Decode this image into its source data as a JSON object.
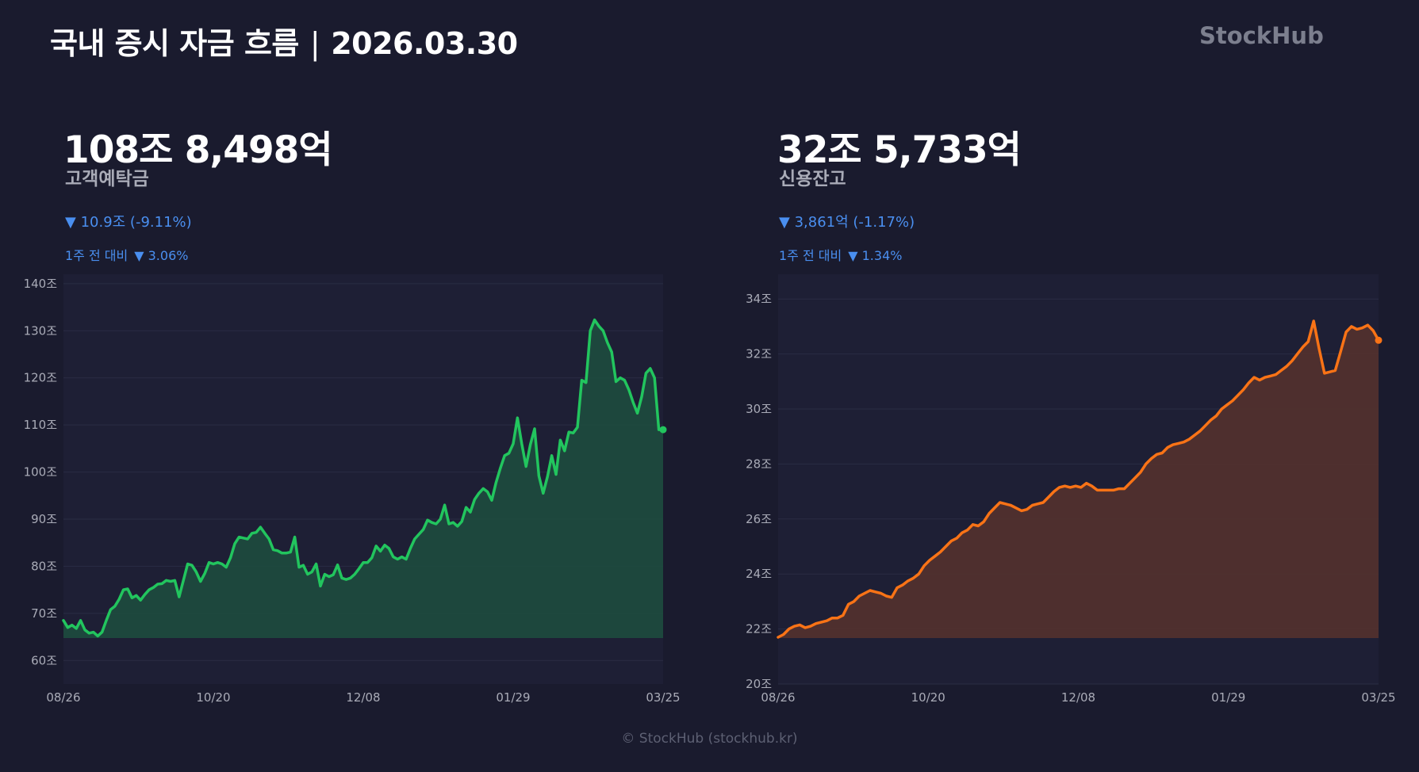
{
  "header": {
    "title_main": "국내 증시 자금 흐름",
    "title_sep": "|",
    "title_date": "2026.03.30",
    "brand": "StockHub"
  },
  "panels": [
    {
      "value": "108조 8,498억",
      "label": "고객예탁금",
      "change": "▼ 10.9조 (-9.11%)",
      "weekly_label": "1주 전 대비",
      "weekly_change": "▼ 3.06%"
    },
    {
      "value": "32조 5,733억",
      "label": "신용잔고",
      "change": "▼ 3,861억 (-1.17%)",
      "weekly_label": "1주 전 대비",
      "weekly_change": "▼ 1.34%"
    }
  ],
  "footer": "© StockHub (stockhub.kr)",
  "chart_data": [
    {
      "type": "area",
      "series": [
        {
          "color": "#22c55e",
          "fill": "#1e4a3e"
        }
      ],
      "x_ticks": [
        "08/26",
        "10/20",
        "12/08",
        "01/29",
        "03/25"
      ],
      "y_ticks": [
        "60조",
        "70조",
        "80조",
        "90조",
        "100조",
        "110조",
        "120조",
        "130조",
        "140조"
      ],
      "ylim": [
        55,
        142
      ],
      "ylabel": "",
      "xlabel": "",
      "grid": true,
      "values": [
        68.5,
        67,
        67.5,
        66.8,
        68.5,
        66.5,
        65.8,
        66,
        65.2,
        66,
        68.5,
        70.8,
        71.5,
        73,
        75,
        75.2,
        73.3,
        73.8,
        72.8,
        74,
        75,
        75.5,
        76.2,
        76.3,
        77,
        76.8,
        77,
        73.5,
        77,
        80.5,
        80.2,
        78.8,
        76.8,
        78.5,
        80.8,
        80.5,
        80.8,
        80.5,
        79.8,
        81.8,
        84.8,
        86.2,
        86,
        85.8,
        87,
        87.2,
        88.3,
        87,
        85.8,
        83.5,
        83.3,
        82.8,
        82.8,
        83,
        86.2,
        79.8,
        80.2,
        78.3,
        78.8,
        80.5,
        75.8,
        78.3,
        77.8,
        78.2,
        80.3,
        77.5,
        77.2,
        77.5,
        78.3,
        79.5,
        80.8,
        80.8,
        81.8,
        84.3,
        83.2,
        84.5,
        83.8,
        82,
        81.5,
        82,
        81.5,
        83.8,
        85.8,
        86.8,
        87.8,
        89.8,
        89.3,
        89,
        90,
        93,
        89,
        89.3,
        88.5,
        89.5,
        92.5,
        91.5,
        94.2,
        95.5,
        96.5,
        95.8,
        94,
        97.8,
        100.8,
        103.5,
        104,
        106,
        111.5,
        106,
        101.2,
        105.8,
        109.2,
        99.2,
        95.5,
        99,
        103.5,
        99.5,
        106.8,
        104.5,
        108.5,
        108.3,
        109.5,
        119.5,
        119,
        130,
        132.3,
        131,
        130,
        127.5,
        125.5,
        119.2,
        120,
        119.5,
        117.5,
        114.8,
        112.5,
        116,
        121,
        122,
        120,
        109,
        109
      ]
    },
    {
      "type": "area",
      "series": [
        {
          "color": "#f97316",
          "fill": "#51302e"
        }
      ],
      "x_ticks": [
        "08/26",
        "10/20",
        "12/08",
        "01/29",
        "03/25"
      ],
      "y_ticks": [
        "20조",
        "22조",
        "24조",
        "26조",
        "28조",
        "30조",
        "32조",
        "34조"
      ],
      "ylim": [
        20,
        34.9
      ],
      "ylabel": "",
      "xlabel": "",
      "grid": true,
      "values": [
        21.7,
        21.8,
        22,
        22.1,
        22.15,
        22.05,
        22.1,
        22.2,
        22.25,
        22.3,
        22.4,
        22.4,
        22.5,
        22.9,
        23,
        23.2,
        23.3,
        23.4,
        23.35,
        23.3,
        23.2,
        23.15,
        23.5,
        23.6,
        23.75,
        23.85,
        24,
        24.3,
        24.5,
        24.65,
        24.8,
        25,
        25.2,
        25.3,
        25.5,
        25.6,
        25.8,
        25.75,
        25.9,
        26.2,
        26.4,
        26.6,
        26.55,
        26.5,
        26.4,
        26.3,
        26.35,
        26.5,
        26.55,
        26.6,
        26.8,
        27,
        27.15,
        27.2,
        27.15,
        27.2,
        27.15,
        27.3,
        27.2,
        27.05,
        27.05,
        27.05,
        27.05,
        27.1,
        27.1,
        27.3,
        27.5,
        27.7,
        28,
        28.2,
        28.35,
        28.4,
        28.6,
        28.7,
        28.75,
        28.8,
        28.9,
        29.05,
        29.2,
        29.4,
        29.6,
        29.75,
        30,
        30.15,
        30.3,
        30.5,
        30.7,
        30.95,
        31.15,
        31.05,
        31.15,
        31.2,
        31.25,
        31.4,
        31.55,
        31.75,
        32,
        32.25,
        32.45,
        33.2,
        32.2,
        31.3,
        31.35,
        31.4,
        32.1,
        32.8,
        33,
        32.9,
        32.95,
        33.05,
        32.85,
        32.5
      ]
    }
  ]
}
